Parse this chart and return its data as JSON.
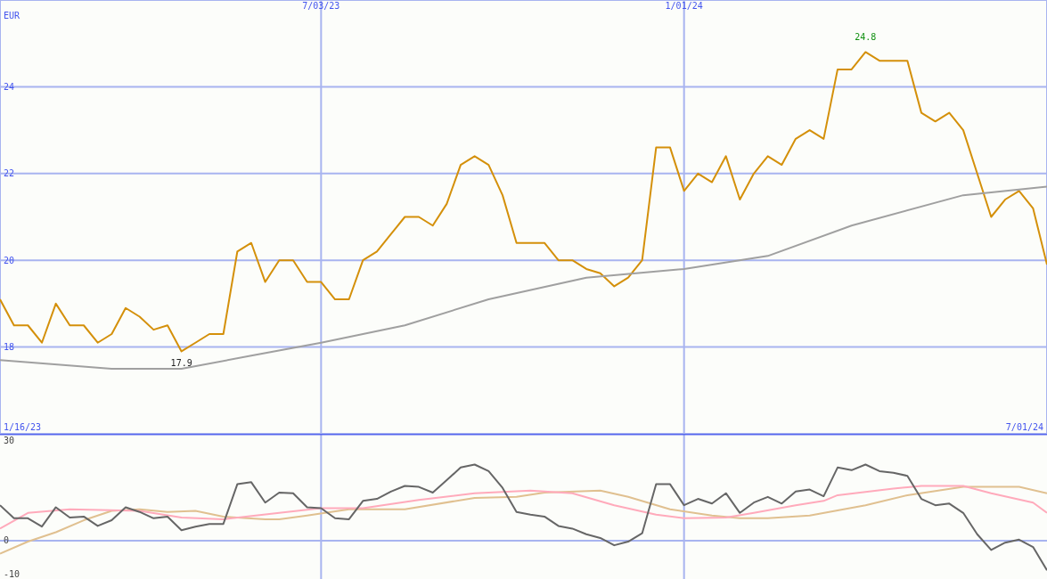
{
  "chart_data": [
    {
      "type": "line",
      "ylabel": "EUR",
      "x": [
        "2023-01-23",
        "2023-01-30",
        "2023-02-06",
        "2023-02-13",
        "2023-02-20",
        "2023-02-27",
        "2023-03-06",
        "2023-03-13",
        "2023-03-20",
        "2023-03-27",
        "2023-04-03",
        "2023-04-10",
        "2023-04-17",
        "2023-04-24",
        "2023-05-01",
        "2023-05-08",
        "2023-05-15",
        "2023-05-22",
        "2023-05-29",
        "2023-06-05",
        "2023-06-12",
        "2023-06-19",
        "2023-06-26",
        "2023-07-03",
        "2023-07-10",
        "2023-07-17",
        "2023-07-24",
        "2023-07-31",
        "2023-08-07",
        "2023-08-14",
        "2023-08-21",
        "2023-08-28",
        "2023-09-04",
        "2023-09-11",
        "2023-09-18",
        "2023-09-25",
        "2023-10-02",
        "2023-10-09",
        "2023-10-16",
        "2023-10-23",
        "2023-10-30",
        "2023-11-06",
        "2023-11-13",
        "2023-11-20",
        "2023-11-27",
        "2023-12-04",
        "2023-12-11",
        "2023-12-18",
        "2023-12-25",
        "2024-01-01",
        "2024-01-08",
        "2024-01-15",
        "2024-01-22",
        "2024-01-29",
        "2024-02-05",
        "2024-02-12",
        "2024-02-19",
        "2024-02-26",
        "2024-03-04",
        "2024-03-11",
        "2024-03-18",
        "2024-03-25",
        "2024-04-01",
        "2024-04-08",
        "2024-04-15",
        "2024-04-22",
        "2024-04-29",
        "2024-05-06",
        "2024-05-13",
        "2024-05-20",
        "2024-05-27",
        "2024-06-03",
        "2024-06-10",
        "2024-06-17",
        "2024-06-24",
        "2024-07-01"
      ],
      "series": [
        {
          "color": "#d4900a",
          "values": [
            19.1,
            18.5,
            18.5,
            18.1,
            19.0,
            18.5,
            18.5,
            18.1,
            18.3,
            18.9,
            18.7,
            18.4,
            18.5,
            17.9,
            18.1,
            18.3,
            18.3,
            20.2,
            20.4,
            19.5,
            20.0,
            20.0,
            19.5,
            19.5,
            19.1,
            19.1,
            20.0,
            20.2,
            20.6,
            21.0,
            21.0,
            20.8,
            21.3,
            22.2,
            22.4,
            22.2,
            21.5,
            20.4,
            20.4,
            20.4,
            20.0,
            20.0,
            19.8,
            19.7,
            19.4,
            19.6,
            20.0,
            22.6,
            22.6,
            21.6,
            22.0,
            21.8,
            22.4,
            21.4,
            22.0,
            22.4,
            22.2,
            22.8,
            23.0,
            22.8,
            24.4,
            24.4,
            24.8,
            24.6,
            24.6,
            24.6,
            23.4,
            23.2,
            23.4,
            23.0,
            22.0,
            21.0,
            21.4,
            21.6,
            21.2,
            19.9
          ]
        },
        {
          "color": "#a0a0a0",
          "x": [
            "2023-01-23",
            "2023-03-20",
            "2023-04-24",
            "2023-05-29",
            "2023-07-03",
            "2023-08-14",
            "2023-09-25",
            "2023-11-13",
            "2024-01-01",
            "2024-02-12",
            "2024-03-25",
            "2024-05-20",
            "2024-07-01"
          ],
          "values": [
            17.7,
            17.5,
            17.5,
            17.8,
            18.1,
            18.5,
            19.1,
            19.6,
            19.8,
            20.1,
            20.8,
            21.5,
            21.7
          ]
        }
      ],
      "xlim": [
        "2023-01-23",
        "2024-07-01"
      ],
      "xticks": [
        {
          "value": "2023-07-03",
          "label": "7/03/23"
        },
        {
          "value": "2024-01-01",
          "label": "1/01/24"
        }
      ],
      "ylim": [
        16,
        26
      ],
      "yticks": [
        18,
        20,
        22,
        24
      ],
      "grid": true,
      "marker": "none",
      "annotations": [
        "1/16/23",
        "7/01/24",
        {
          "text": "24.8",
          "x": "2024-04-01",
          "y": 24.8
        },
        {
          "text": "17.9",
          "x": "2023-04-24",
          "y": 17.9
        }
      ]
    },
    {
      "type": "line",
      "x": [
        "2023-01-23",
        "2023-01-30",
        "2023-02-06",
        "2023-02-13",
        "2023-02-20",
        "2023-02-27",
        "2023-03-06",
        "2023-03-13",
        "2023-03-20",
        "2023-03-27",
        "2023-04-03",
        "2023-04-10",
        "2023-04-17",
        "2023-04-24",
        "2023-05-01",
        "2023-05-08",
        "2023-05-15",
        "2023-05-22",
        "2023-05-29",
        "2023-06-05",
        "2023-06-12",
        "2023-06-19",
        "2023-06-26",
        "2023-07-03",
        "2023-07-10",
        "2023-07-17",
        "2023-07-24",
        "2023-07-31",
        "2023-08-07",
        "2023-08-14",
        "2023-08-21",
        "2023-08-28",
        "2023-09-04",
        "2023-09-11",
        "2023-09-18",
        "2023-09-25",
        "2023-10-02",
        "2023-10-09",
        "2023-10-16",
        "2023-10-23",
        "2023-10-30",
        "2023-11-06",
        "2023-11-13",
        "2023-11-20",
        "2023-11-27",
        "2023-12-04",
        "2023-12-11",
        "2023-12-18",
        "2023-12-25",
        "2024-01-01",
        "2024-01-08",
        "2024-01-15",
        "2024-01-22",
        "2024-01-29",
        "2024-02-05",
        "2024-02-12",
        "2024-02-19",
        "2024-02-26",
        "2024-03-04",
        "2024-03-11",
        "2024-03-18",
        "2024-03-25",
        "2024-04-01",
        "2024-04-08",
        "2024-04-15",
        "2024-04-22",
        "2024-04-29",
        "2024-05-06",
        "2024-05-13",
        "2024-05-20",
        "2024-05-27",
        "2024-06-03",
        "2024-06-10",
        "2024-06-17",
        "2024-06-24",
        "2024-07-01"
      ],
      "series": [
        {
          "color": "#e0c090",
          "x": [
            "2023-01-23",
            "2023-02-06",
            "2023-02-20",
            "2023-03-06",
            "2023-03-20",
            "2023-04-03",
            "2023-04-17",
            "2023-05-01",
            "2023-05-15",
            "2023-06-05",
            "2023-06-12",
            "2023-06-26",
            "2023-07-17",
            "2023-08-14",
            "2023-09-18",
            "2023-10-09",
            "2023-10-23",
            "2023-11-20",
            "2023-12-04",
            "2023-12-25",
            "2024-01-15",
            "2024-01-29",
            "2024-02-12",
            "2024-03-04",
            "2024-04-01",
            "2024-04-22",
            "2024-05-20",
            "2024-06-17",
            "2024-07-01"
          ],
          "values": [
            -3.9,
            -0.3,
            2.5,
            6.1,
            8.9,
            9.4,
            8.6,
            8.9,
            7.2,
            6.4,
            6.4,
            7.5,
            9.4,
            9.4,
            12.8,
            13.1,
            14.4,
            15.0,
            13.1,
            9.4,
            7.5,
            6.7,
            6.7,
            7.5,
            10.6,
            13.6,
            16.1,
            16.1,
            14.2
          ]
        },
        {
          "color": "#ffaabb",
          "x": [
            "2023-01-23",
            "2023-02-06",
            "2023-02-27",
            "2023-04-03",
            "2023-04-24",
            "2023-05-15",
            "2023-06-12",
            "2023-07-03",
            "2023-07-24",
            "2023-08-21",
            "2023-09-18",
            "2023-10-16",
            "2023-11-06",
            "2023-11-27",
            "2023-12-18",
            "2024-01-01",
            "2024-01-22",
            "2024-02-05",
            "2024-02-26",
            "2024-03-11",
            "2024-03-18",
            "2024-04-15",
            "2024-04-29",
            "2024-05-20",
            "2024-06-03",
            "2024-06-24",
            "2024-07-01"
          ],
          "values": [
            3.6,
            8.3,
            9.4,
            8.9,
            6.9,
            6.4,
            8.3,
            9.7,
            9.7,
            12.2,
            14.2,
            15.0,
            14.2,
            10.6,
            7.8,
            6.7,
            6.9,
            8.3,
            10.6,
            11.9,
            13.6,
            15.6,
            16.4,
            16.4,
            14.2,
            11.4,
            8.3
          ]
        },
        {
          "color": "#666666",
          "values": [
            10.6,
            6.7,
            6.7,
            4.2,
            10.0,
            6.9,
            7.2,
            4.4,
            6.1,
            10.0,
            8.6,
            6.7,
            7.2,
            3.1,
            4.2,
            5.0,
            5.0,
            16.9,
            17.5,
            11.4,
            14.4,
            14.2,
            10.0,
            9.7,
            6.7,
            6.4,
            11.9,
            12.5,
            14.7,
            16.4,
            16.1,
            14.4,
            18.1,
            21.9,
            22.8,
            20.8,
            15.8,
            8.6,
            7.8,
            7.2,
            4.4,
            3.6,
            1.9,
            0.8,
            -1.4,
            -0.3,
            2.2,
            16.9,
            16.9,
            10.6,
            12.5,
            11.1,
            14.2,
            8.3,
            11.4,
            13.1,
            11.1,
            14.7,
            15.3,
            13.3,
            21.9,
            21.1,
            22.8,
            20.8,
            20.3,
            19.4,
            12.5,
            10.6,
            11.1,
            8.3,
            1.9,
            -2.8,
            -0.6,
            0.3,
            -1.9,
            -8.9
          ]
        }
      ],
      "xlim": [
        "2023-01-23",
        "2024-07-01"
      ],
      "ylim": [
        -11.5,
        32
      ],
      "yticks": [
        -10,
        0,
        30
      ],
      "marker": "none",
      "tick_labels": "y",
      "ref_lines": [
        {
          "axis": "y",
          "value": 0,
          "color": "#a8b4f0"
        },
        {
          "axis": "x",
          "value": "2023-07-03",
          "color": "#a8b4f0"
        },
        {
          "axis": "x",
          "value": "2024-01-01",
          "color": "#a8b4f0"
        }
      ]
    }
  ]
}
